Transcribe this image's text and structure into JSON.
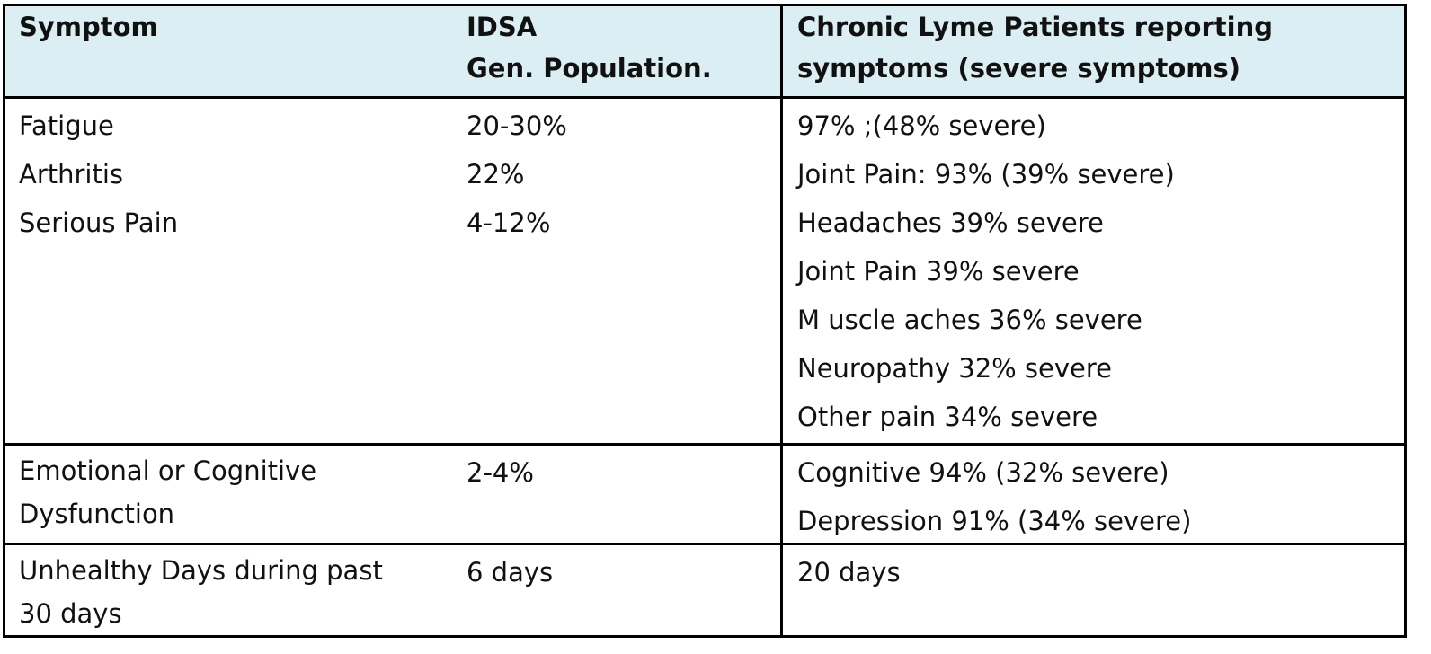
{
  "table": {
    "headers": {
      "symptom": "Symptom",
      "idsa": "IDSA\nGen. Population.",
      "lyme": "Chronic Lyme Patients reporting\nsymptoms (severe symptoms)"
    },
    "group1": {
      "symptoms": [
        "Fatigue",
        "Arthritis",
        "Serious Pain"
      ],
      "idsa": [
        "20-30%",
        "22%",
        "4-12%"
      ],
      "lyme": [
        "97% ;(48% severe)",
        "Joint Pain: 93% (39% severe)",
        "Headaches 39% severe",
        "Joint Pain 39% severe",
        "M uscle aches 36% severe",
        "Neuropathy 32% severe",
        "Other pain 34% severe"
      ]
    },
    "group2": {
      "symptom": "Emotional or Cognitive\nDysfunction",
      "idsa": "2-4%",
      "lyme": [
        "Cognitive 94% (32% severe)",
        "Depression 91% (34% severe)"
      ]
    },
    "group3": {
      "symptom": "Unhealthy Days during past\n30 days",
      "idsa": "6 days",
      "lyme": "20 days"
    }
  }
}
